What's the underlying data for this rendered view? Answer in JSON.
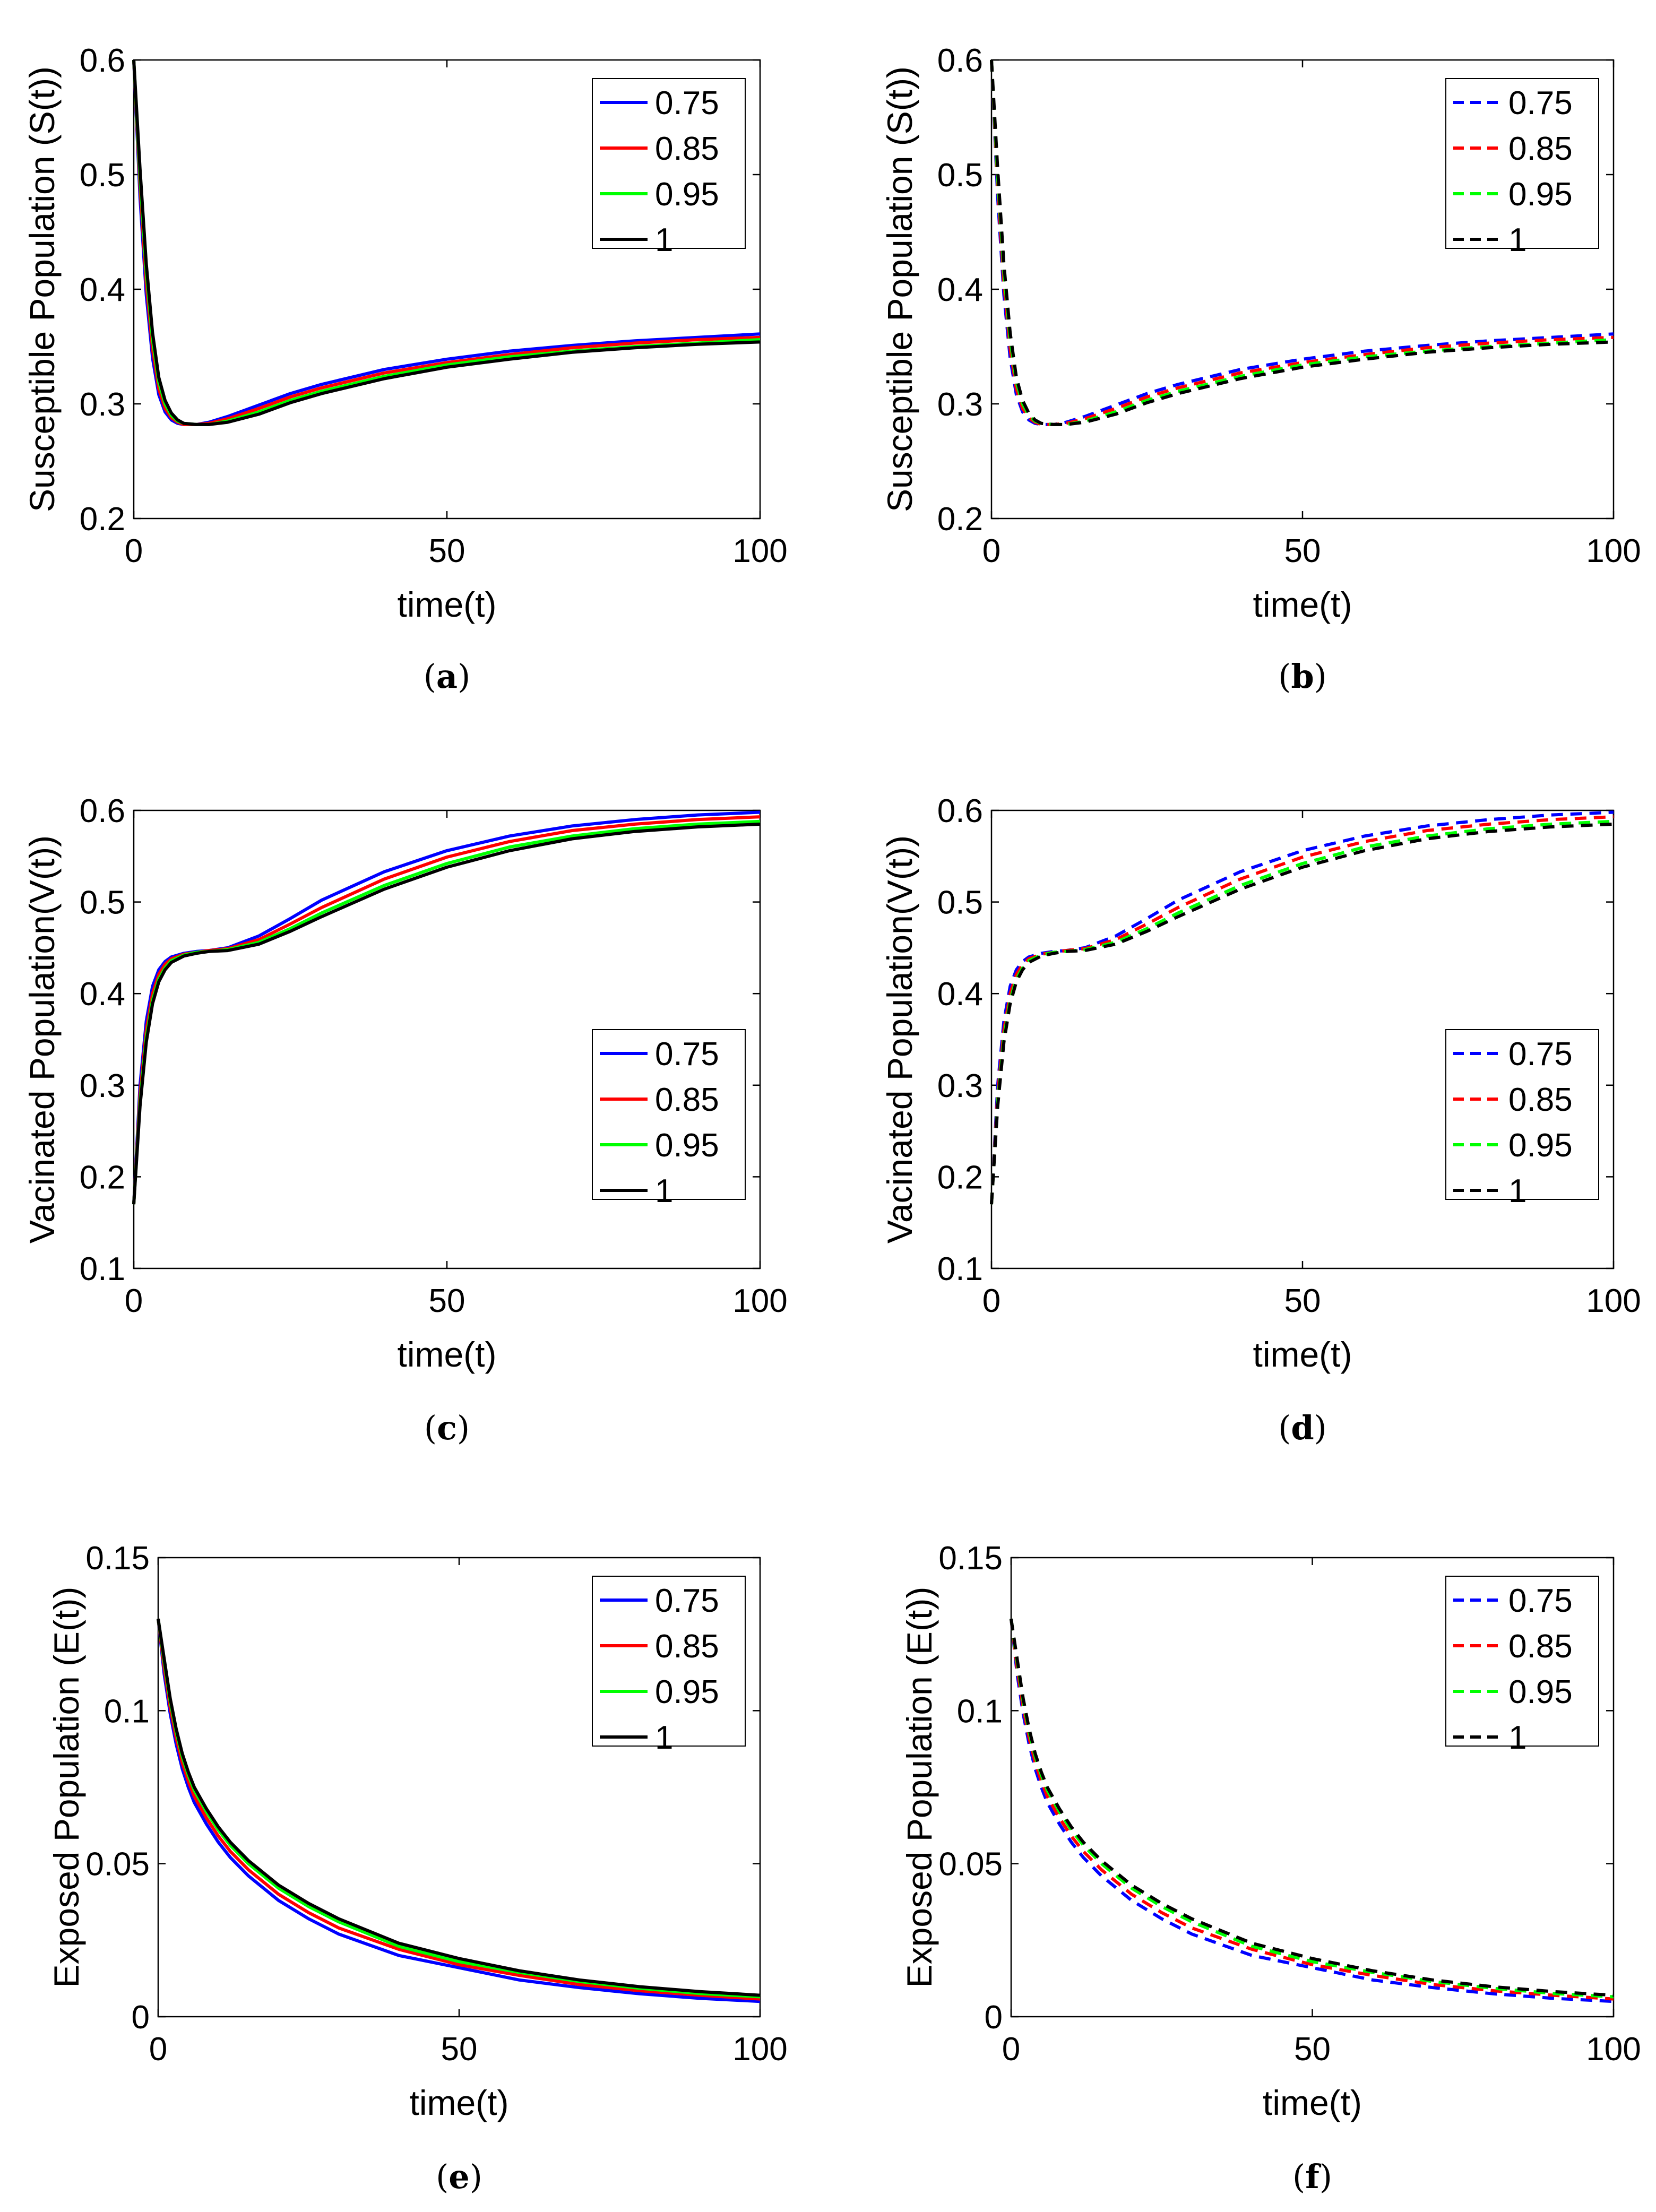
{
  "figure": {
    "colors": {
      "s075": "#0000ff",
      "s085": "#ff0000",
      "s095": "#00ff00",
      "s1": "#000000"
    }
  },
  "chart_data": [
    {
      "panel": "a",
      "caption_letter": "a",
      "type": "line",
      "line_style": "solid",
      "ylabel": "Susceptible Population (S(t))",
      "xlabel": "time(t)",
      "xlim": [
        0,
        100
      ],
      "ylim": [
        0.2,
        0.6
      ],
      "xticks": [
        "0",
        "50",
        "100"
      ],
      "yticks": [
        "0.2",
        "0.3",
        "0.4",
        "0.5",
        "0.6"
      ],
      "legend_position": "top-right",
      "x": [
        0,
        1,
        2,
        3,
        4,
        5,
        6,
        7,
        8,
        10,
        12,
        15,
        20,
        25,
        30,
        40,
        50,
        60,
        70,
        80,
        90,
        100
      ],
      "series": [
        {
          "name": "0.75",
          "values": [
            0.6,
            0.48,
            0.395,
            0.34,
            0.308,
            0.293,
            0.286,
            0.283,
            0.282,
            0.282,
            0.284,
            0.289,
            0.299,
            0.309,
            0.317,
            0.33,
            0.339,
            0.346,
            0.351,
            0.355,
            0.358,
            0.361
          ]
        },
        {
          "name": "0.85",
          "values": [
            0.6,
            0.49,
            0.405,
            0.348,
            0.313,
            0.296,
            0.288,
            0.284,
            0.282,
            0.282,
            0.283,
            0.287,
            0.296,
            0.306,
            0.314,
            0.327,
            0.336,
            0.343,
            0.349,
            0.353,
            0.356,
            0.358
          ]
        },
        {
          "name": "0.95",
          "values": [
            0.6,
            0.498,
            0.415,
            0.356,
            0.319,
            0.3,
            0.29,
            0.285,
            0.283,
            0.282,
            0.282,
            0.285,
            0.293,
            0.303,
            0.311,
            0.324,
            0.334,
            0.341,
            0.346,
            0.35,
            0.353,
            0.356
          ]
        },
        {
          "name": "1",
          "values": [
            0.6,
            0.505,
            0.422,
            0.362,
            0.323,
            0.303,
            0.292,
            0.286,
            0.283,
            0.282,
            0.282,
            0.284,
            0.291,
            0.301,
            0.309,
            0.322,
            0.332,
            0.339,
            0.345,
            0.349,
            0.352,
            0.354
          ]
        }
      ]
    },
    {
      "panel": "b",
      "caption_letter": "b",
      "type": "line",
      "line_style": "dashed",
      "ylabel": "Susceptible Population (S(t))",
      "xlabel": "time(t)",
      "xlim": [
        0,
        100
      ],
      "ylim": [
        0.2,
        0.6
      ],
      "xticks": [
        "0",
        "50",
        "100"
      ],
      "yticks": [
        "0.2",
        "0.3",
        "0.4",
        "0.5",
        "0.6"
      ],
      "legend_position": "top-right",
      "x": [
        0,
        1,
        2,
        3,
        4,
        5,
        6,
        7,
        8,
        10,
        12,
        15,
        20,
        25,
        30,
        40,
        50,
        60,
        70,
        80,
        90,
        100
      ],
      "series": [
        {
          "name": "0.75",
          "values": [
            0.6,
            0.48,
            0.395,
            0.34,
            0.308,
            0.293,
            0.286,
            0.283,
            0.282,
            0.282,
            0.284,
            0.289,
            0.299,
            0.309,
            0.317,
            0.33,
            0.339,
            0.346,
            0.351,
            0.355,
            0.358,
            0.361
          ]
        },
        {
          "name": "0.85",
          "values": [
            0.6,
            0.49,
            0.405,
            0.348,
            0.313,
            0.296,
            0.288,
            0.284,
            0.282,
            0.282,
            0.283,
            0.287,
            0.296,
            0.306,
            0.314,
            0.327,
            0.336,
            0.343,
            0.349,
            0.353,
            0.356,
            0.358
          ]
        },
        {
          "name": "0.95",
          "values": [
            0.6,
            0.498,
            0.415,
            0.356,
            0.319,
            0.3,
            0.29,
            0.285,
            0.283,
            0.282,
            0.282,
            0.285,
            0.293,
            0.303,
            0.311,
            0.324,
            0.334,
            0.341,
            0.346,
            0.35,
            0.353,
            0.356
          ]
        },
        {
          "name": "1",
          "values": [
            0.6,
            0.505,
            0.422,
            0.362,
            0.323,
            0.303,
            0.292,
            0.286,
            0.283,
            0.282,
            0.282,
            0.284,
            0.291,
            0.301,
            0.309,
            0.322,
            0.332,
            0.339,
            0.345,
            0.349,
            0.352,
            0.354
          ]
        }
      ]
    },
    {
      "panel": "c",
      "caption_letter": "c",
      "type": "line",
      "line_style": "solid",
      "ylabel": "Vacinated Population(V(t))",
      "xlabel": "time(t)",
      "xlim": [
        0,
        100
      ],
      "ylim": [
        0.1,
        0.6
      ],
      "xticks": [
        "0",
        "50",
        "100"
      ],
      "yticks": [
        "0.1",
        "0.2",
        "0.3",
        "0.4",
        "0.5",
        "0.6"
      ],
      "legend_position": "bottom-right",
      "x": [
        0,
        1,
        2,
        3,
        4,
        5,
        6,
        8,
        10,
        12,
        15,
        20,
        25,
        30,
        40,
        50,
        60,
        70,
        80,
        90,
        100
      ],
      "series": [
        {
          "name": "0.75",
          "values": [
            0.17,
            0.3,
            0.37,
            0.408,
            0.426,
            0.435,
            0.44,
            0.444,
            0.446,
            0.447,
            0.45,
            0.463,
            0.482,
            0.502,
            0.533,
            0.556,
            0.572,
            0.583,
            0.59,
            0.595,
            0.598
          ]
        },
        {
          "name": "0.85",
          "values": [
            0.17,
            0.29,
            0.36,
            0.4,
            0.421,
            0.432,
            0.438,
            0.443,
            0.445,
            0.447,
            0.449,
            0.459,
            0.476,
            0.494,
            0.525,
            0.549,
            0.566,
            0.578,
            0.585,
            0.59,
            0.593
          ]
        },
        {
          "name": "0.95",
          "values": [
            0.17,
            0.282,
            0.352,
            0.393,
            0.416,
            0.428,
            0.436,
            0.442,
            0.445,
            0.446,
            0.448,
            0.456,
            0.471,
            0.488,
            0.518,
            0.542,
            0.56,
            0.572,
            0.58,
            0.585,
            0.588
          ]
        },
        {
          "name": "1",
          "values": [
            0.17,
            0.277,
            0.347,
            0.389,
            0.413,
            0.426,
            0.434,
            0.441,
            0.444,
            0.446,
            0.447,
            0.454,
            0.468,
            0.484,
            0.514,
            0.538,
            0.556,
            0.569,
            0.577,
            0.582,
            0.585
          ]
        }
      ]
    },
    {
      "panel": "d",
      "caption_letter": "d",
      "type": "line",
      "line_style": "dashed",
      "ylabel": "Vacinated Population(V(t))",
      "xlabel": "time(t)",
      "xlim": [
        0,
        100
      ],
      "ylim": [
        0.1,
        0.6
      ],
      "xticks": [
        "0",
        "50",
        "100"
      ],
      "yticks": [
        "0.1",
        "0.2",
        "0.3",
        "0.4",
        "0.5",
        "0.6"
      ],
      "legend_position": "bottom-right",
      "x": [
        0,
        1,
        2,
        3,
        4,
        5,
        6,
        8,
        10,
        12,
        15,
        20,
        25,
        30,
        40,
        50,
        60,
        70,
        80,
        90,
        100
      ],
      "series": [
        {
          "name": "0.75",
          "values": [
            0.17,
            0.3,
            0.37,
            0.408,
            0.426,
            0.435,
            0.44,
            0.444,
            0.446,
            0.447,
            0.45,
            0.463,
            0.482,
            0.502,
            0.533,
            0.556,
            0.572,
            0.583,
            0.59,
            0.595,
            0.598
          ]
        },
        {
          "name": "0.85",
          "values": [
            0.17,
            0.29,
            0.36,
            0.4,
            0.421,
            0.432,
            0.438,
            0.443,
            0.445,
            0.447,
            0.449,
            0.459,
            0.476,
            0.494,
            0.525,
            0.549,
            0.566,
            0.578,
            0.585,
            0.59,
            0.593
          ]
        },
        {
          "name": "0.95",
          "values": [
            0.17,
            0.282,
            0.352,
            0.393,
            0.416,
            0.428,
            0.436,
            0.442,
            0.445,
            0.446,
            0.448,
            0.456,
            0.471,
            0.488,
            0.518,
            0.542,
            0.56,
            0.572,
            0.58,
            0.585,
            0.588
          ]
        },
        {
          "name": "1",
          "values": [
            0.17,
            0.277,
            0.347,
            0.389,
            0.413,
            0.426,
            0.434,
            0.441,
            0.444,
            0.446,
            0.447,
            0.454,
            0.468,
            0.484,
            0.514,
            0.538,
            0.556,
            0.569,
            0.577,
            0.582,
            0.585
          ]
        }
      ]
    },
    {
      "panel": "e",
      "caption_letter": "e",
      "type": "line",
      "line_style": "solid",
      "ylabel": "Exposed Population (E(t))",
      "xlabel": "time(t)",
      "xlim": [
        0,
        100
      ],
      "ylim": [
        0,
        0.15
      ],
      "xticks": [
        "0",
        "50",
        "100"
      ],
      "yticks": [
        "0",
        "0.05",
        "0.1",
        "0.15"
      ],
      "legend_position": "top-right",
      "x": [
        0,
        1,
        2,
        3,
        4,
        5,
        6,
        8,
        10,
        12,
        15,
        20,
        25,
        30,
        40,
        50,
        60,
        70,
        80,
        90,
        100
      ],
      "series": [
        {
          "name": "0.75",
          "values": [
            0.13,
            0.112,
            0.099,
            0.089,
            0.081,
            0.075,
            0.07,
            0.063,
            0.057,
            0.052,
            0.046,
            0.038,
            0.032,
            0.027,
            0.02,
            0.016,
            0.012,
            0.0095,
            0.0075,
            0.006,
            0.005
          ]
        },
        {
          "name": "0.85",
          "values": [
            0.13,
            0.114,
            0.101,
            0.091,
            0.083,
            0.077,
            0.072,
            0.065,
            0.059,
            0.054,
            0.048,
            0.04,
            0.034,
            0.029,
            0.022,
            0.017,
            0.0135,
            0.0105,
            0.0085,
            0.007,
            0.0058
          ]
        },
        {
          "name": "0.95",
          "values": [
            0.13,
            0.116,
            0.103,
            0.093,
            0.085,
            0.079,
            0.074,
            0.067,
            0.061,
            0.056,
            0.05,
            0.042,
            0.036,
            0.031,
            0.023,
            0.018,
            0.0145,
            0.0115,
            0.0093,
            0.0076,
            0.0065
          ]
        },
        {
          "name": "1",
          "values": [
            0.13,
            0.117,
            0.104,
            0.094,
            0.086,
            0.08,
            0.075,
            0.068,
            0.062,
            0.057,
            0.051,
            0.043,
            0.037,
            0.032,
            0.024,
            0.019,
            0.015,
            0.012,
            0.0098,
            0.0082,
            0.007
          ]
        }
      ]
    },
    {
      "panel": "f",
      "caption_letter": "f",
      "type": "line",
      "line_style": "dashed",
      "ylabel": "Exposed Population (E(t))",
      "xlabel": "time(t)",
      "xlim": [
        0,
        100
      ],
      "ylim": [
        0,
        0.15
      ],
      "xticks": [
        "0",
        "50",
        "100"
      ],
      "yticks": [
        "0",
        "0.05",
        "0.1",
        "0.15"
      ],
      "legend_position": "top-right",
      "x": [
        0,
        1,
        2,
        3,
        4,
        5,
        6,
        8,
        10,
        12,
        15,
        20,
        25,
        30,
        40,
        50,
        60,
        70,
        80,
        90,
        100
      ],
      "series": [
        {
          "name": "0.75",
          "values": [
            0.13,
            0.112,
            0.099,
            0.089,
            0.081,
            0.075,
            0.07,
            0.063,
            0.057,
            0.052,
            0.046,
            0.038,
            0.032,
            0.027,
            0.02,
            0.016,
            0.012,
            0.0095,
            0.0075,
            0.006,
            0.005
          ]
        },
        {
          "name": "0.85",
          "values": [
            0.13,
            0.114,
            0.101,
            0.091,
            0.083,
            0.077,
            0.072,
            0.065,
            0.059,
            0.054,
            0.048,
            0.04,
            0.034,
            0.029,
            0.022,
            0.017,
            0.0135,
            0.0105,
            0.0085,
            0.007,
            0.0058
          ]
        },
        {
          "name": "0.95",
          "values": [
            0.13,
            0.116,
            0.103,
            0.093,
            0.085,
            0.079,
            0.074,
            0.067,
            0.061,
            0.056,
            0.05,
            0.042,
            0.036,
            0.031,
            0.023,
            0.018,
            0.0145,
            0.0115,
            0.0093,
            0.0076,
            0.0065
          ]
        },
        {
          "name": "1",
          "values": [
            0.13,
            0.117,
            0.104,
            0.094,
            0.086,
            0.08,
            0.075,
            0.068,
            0.062,
            0.057,
            0.051,
            0.043,
            0.037,
            0.032,
            0.024,
            0.019,
            0.015,
            0.012,
            0.0098,
            0.0082,
            0.007
          ]
        }
      ]
    }
  ]
}
